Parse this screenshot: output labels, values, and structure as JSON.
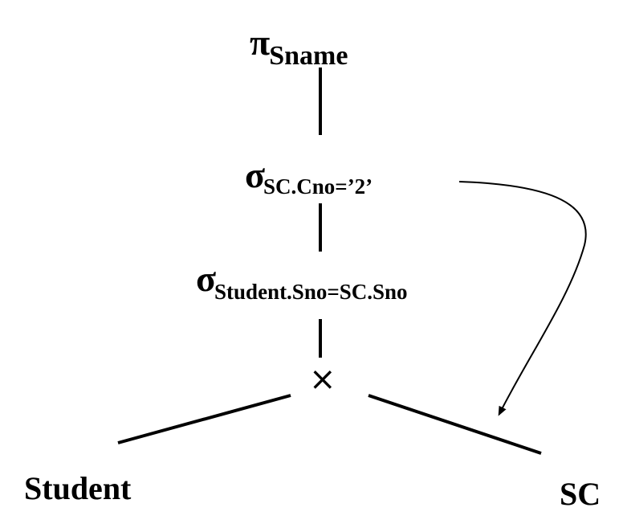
{
  "tree": {
    "projection": {
      "symbol": "π",
      "attribute": "Sname"
    },
    "selection_course": {
      "symbol": "σ",
      "condition": "SC.Cno=’2’"
    },
    "selection_join": {
      "symbol": "σ",
      "condition": "Student.Sno=SC.Sno"
    },
    "product": {
      "symbol": "×"
    },
    "leaves": {
      "left": "Student",
      "right": "SC"
    }
  },
  "colors": {
    "stroke": "#000000",
    "background": "#ffffff"
  }
}
